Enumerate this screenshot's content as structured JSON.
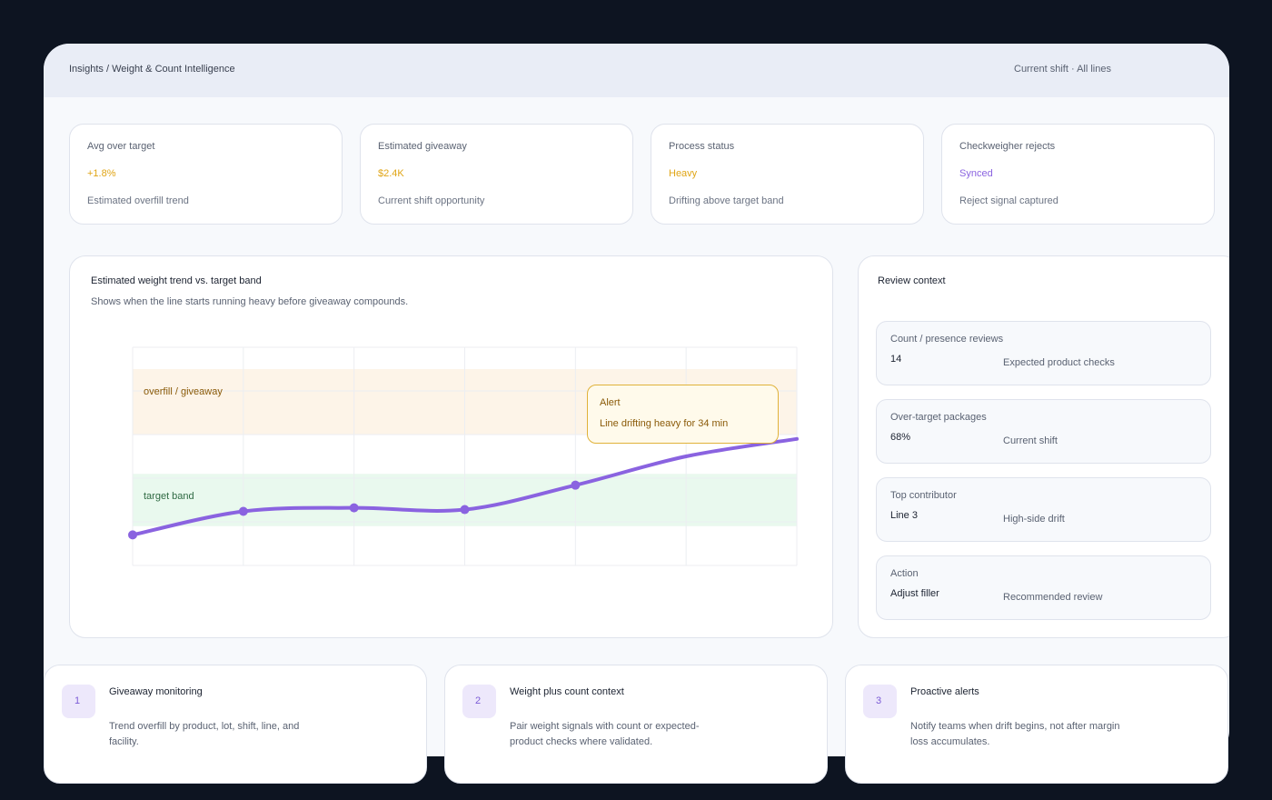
{
  "header": {
    "breadcrumb": "Insights / Weight & Count Intelligence",
    "scope": "Current shift · All lines"
  },
  "kpis": [
    {
      "title": "Avg over target",
      "value": "+1.8%",
      "value_color": "#e0a516",
      "subtitle": "Estimated overfill trend"
    },
    {
      "title": "Estimated giveaway",
      "value": "$2.4K",
      "value_color": "#e0a516",
      "subtitle": "Current shift opportunity"
    },
    {
      "title": "Process status",
      "value": "Heavy",
      "value_color": "#e0a516",
      "subtitle": "Drifting above target band"
    },
    {
      "title": "Checkweigher rejects",
      "value": "Synced",
      "value_color": "#8a63e0",
      "subtitle": "Reject signal captured"
    }
  ],
  "chart": {
    "title": "Estimated weight trend vs. target band",
    "subtitle": "Shows when the line starts running heavy before giveaway compounds.",
    "overfill_label": "overfill / giveaway",
    "target_label": "target band",
    "alert_title": "Alert",
    "alert_text": "Line drifting heavy for 34 min",
    "line_color": "#8a63e0",
    "overfill_color": "#fdf4e8",
    "target_color": "#e9f9ee"
  },
  "chart_data": {
    "type": "line",
    "title": "Estimated weight trend vs. target band",
    "x": [
      0,
      1,
      2,
      3,
      4,
      5,
      6
    ],
    "values": [
      -0.3,
      0.24,
      0.32,
      0.28,
      0.84,
      1.5,
      1.9
    ],
    "ylim": [
      -1,
      4
    ],
    "bands": [
      {
        "name": "target band",
        "range": [
          -0.1,
          1.1
        ]
      },
      {
        "name": "overfill / giveaway",
        "range": [
          2.0,
          3.5
        ]
      }
    ],
    "grid": true,
    "xlabel": "",
    "ylabel": ""
  },
  "review": {
    "title": "Review context",
    "items": [
      {
        "label": "Count / presence reviews",
        "value": "14",
        "note": "Expected product checks"
      },
      {
        "label": "Over-target packages",
        "value": "68%",
        "note": "Current shift"
      },
      {
        "label": "Top contributor",
        "value": "Line 3",
        "note": "High-side drift"
      },
      {
        "label": "Action",
        "value": "Adjust filler",
        "note": "Recommended review"
      }
    ]
  },
  "features": [
    {
      "num": "1",
      "title": "Giveaway monitoring",
      "desc": "Trend overfill by product, lot, shift, line, and facility."
    },
    {
      "num": "2",
      "title": "Weight plus count context",
      "desc": "Pair weight signals with count or expected-product checks where validated."
    },
    {
      "num": "3",
      "title": "Proactive alerts",
      "desc": "Notify teams when drift begins, not after margin loss accumulates."
    }
  ]
}
